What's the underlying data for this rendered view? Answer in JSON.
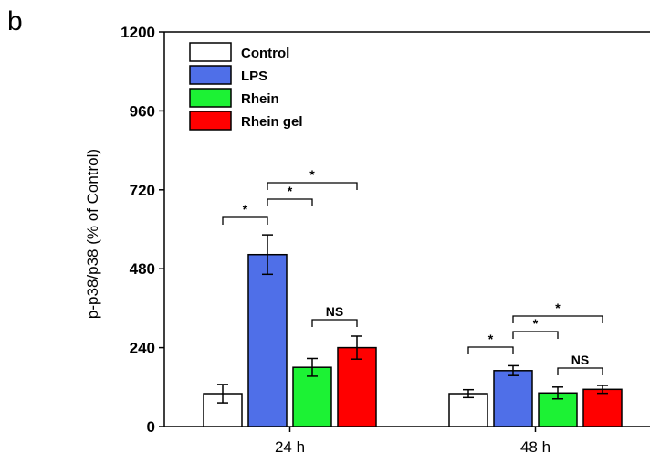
{
  "panel_label": "b",
  "chart_data": {
    "type": "bar",
    "ylabel": "p-p38/p38  (% of Control)",
    "ylim": [
      0,
      1200
    ],
    "yticks": [
      "0",
      "240",
      "480",
      "720",
      "960",
      "1200"
    ],
    "categories": [
      "24 h",
      "48 h"
    ],
    "grid": false,
    "legend_position": "top-left",
    "series": [
      {
        "name": "Control",
        "color": "#ffffff",
        "values": [
          100,
          100
        ],
        "errors": [
          28,
          12
        ]
      },
      {
        "name": "LPS",
        "color": "#4f6fe8",
        "values": [
          523,
          170
        ],
        "errors": [
          60,
          15
        ]
      },
      {
        "name": "Rhein",
        "color": "#1cf234",
        "values": [
          180,
          102
        ],
        "errors": [
          27,
          18
        ]
      },
      {
        "name": "Rhein gel",
        "color": "#ff0000",
        "values": [
          240,
          113
        ],
        "errors": [
          35,
          12
        ]
      }
    ],
    "annotations": [
      {
        "group": 0,
        "from": 0,
        "to": 1,
        "label": "*"
      },
      {
        "group": 0,
        "from": 1,
        "to": 2,
        "label": "*"
      },
      {
        "group": 0,
        "from": 1,
        "to": 3,
        "label": "*"
      },
      {
        "group": 0,
        "from": 2,
        "to": 3,
        "label": "NS"
      },
      {
        "group": 1,
        "from": 0,
        "to": 1,
        "label": "*"
      },
      {
        "group": 1,
        "from": 1,
        "to": 2,
        "label": "*"
      },
      {
        "group": 1,
        "from": 1,
        "to": 3,
        "label": "*"
      },
      {
        "group": 1,
        "from": 2,
        "to": 3,
        "label": "NS"
      }
    ]
  }
}
